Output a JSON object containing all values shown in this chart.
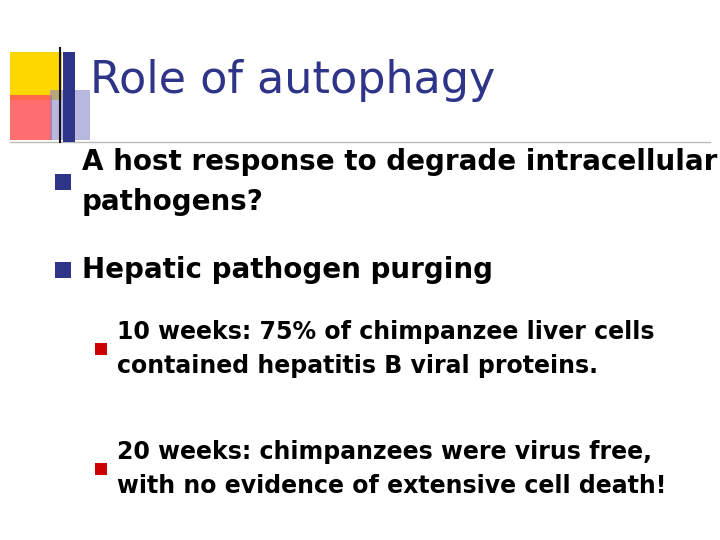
{
  "title": "Role of autophagy",
  "title_color": "#2E3488",
  "title_fontsize": 32,
  "background_color": "#FFFFFF",
  "bullet1_text": "A host response to degrade intracellular\npathogens?",
  "bullet2_text": "Hepatic pathogen purging",
  "sub_bullet1_text": "10 weeks: 75% of chimpanzee liver cells\ncontained hepatitis B viral proteins.",
  "sub_bullet2_text": "20 weeks: chimpanzees were virus free,\nwith no evidence of extensive cell death!",
  "bullet_color": "#2E3488",
  "sub_bullet_color": "#CC0000",
  "text_color": "#000000",
  "bullet_fontsize": 20,
  "sub_bullet_fontsize": 17,
  "line_color": "#BBBBBB",
  "decoration_yellow": "#FFD700",
  "decoration_red": "#FF5555",
  "decoration_blue": "#2E3488",
  "decoration_blue_fade": "#8888CC"
}
